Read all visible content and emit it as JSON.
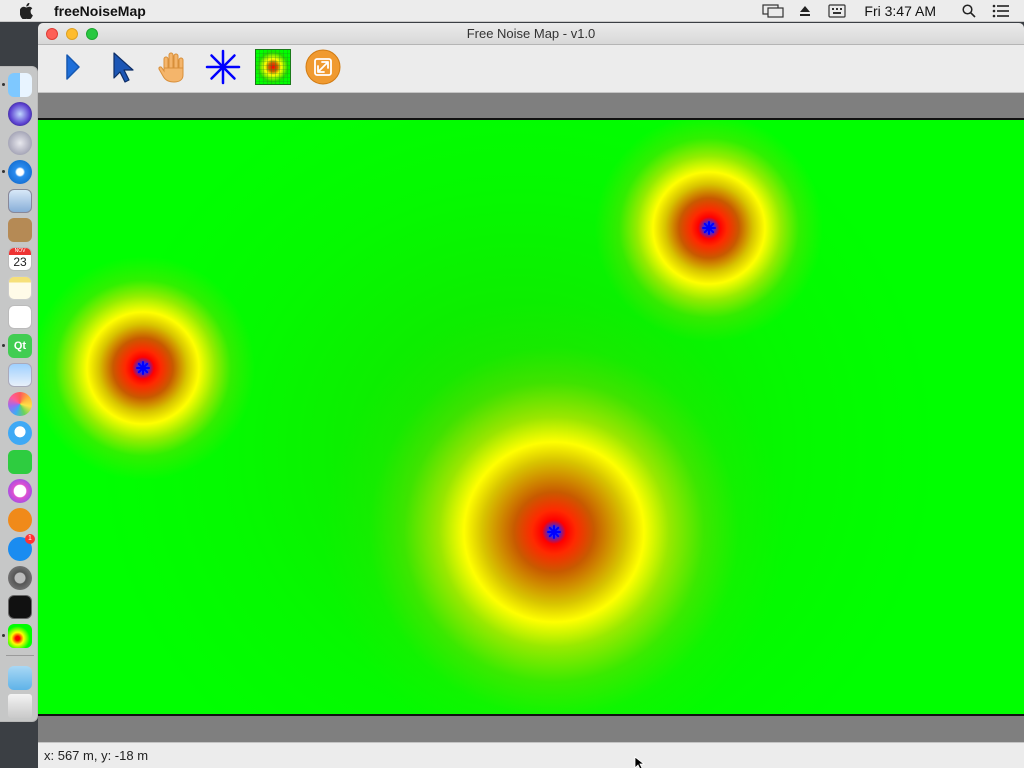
{
  "menubar": {
    "app_name": "freeNoiseMap",
    "clock": "Fri 3:47 AM",
    "icons": [
      "apple-icon",
      "airplay-display-icon",
      "eject-icon",
      "keyboard-icon",
      "spotlight-search-icon",
      "notification-list-icon"
    ]
  },
  "dock": {
    "calendar_day": "23",
    "calendar_month": "NOV",
    "qt_label": "Qt",
    "app_store_badge": "1",
    "items": [
      "finder-icon",
      "siri-icon",
      "launchpad-icon",
      "safari-icon",
      "mail-stamp-icon",
      "contacts-icon",
      "calendar-icon",
      "notes-icon",
      "reminders-icon",
      "qt-creator-icon",
      "preview-icon",
      "photos-icon",
      "messages-icon",
      "facetime-icon",
      "itunes-icon",
      "ibooks-icon",
      "app-store-icon",
      "system-preferences-icon",
      "terminal-icon",
      "freenoisemap-icon",
      "downloads-folder-icon",
      "trash-icon"
    ]
  },
  "window": {
    "title": "Free Noise Map - v1.0"
  },
  "toolbar": {
    "tools": [
      "run-icon",
      "select-arrow-icon",
      "pan-hand-icon",
      "noise-source-icon",
      "grid-map-icon",
      "fit-to-view-icon"
    ]
  },
  "map": {
    "sources": [
      "noise-source-1",
      "noise-source-2",
      "noise-source-3"
    ],
    "colors": {
      "background": "#00ff00",
      "low": "#ffff00",
      "mid": "#c85a00",
      "high": "#ff0000",
      "source": "#0000ff"
    }
  },
  "status": {
    "coordinates": "x: 567 m, y: -18 m"
  }
}
